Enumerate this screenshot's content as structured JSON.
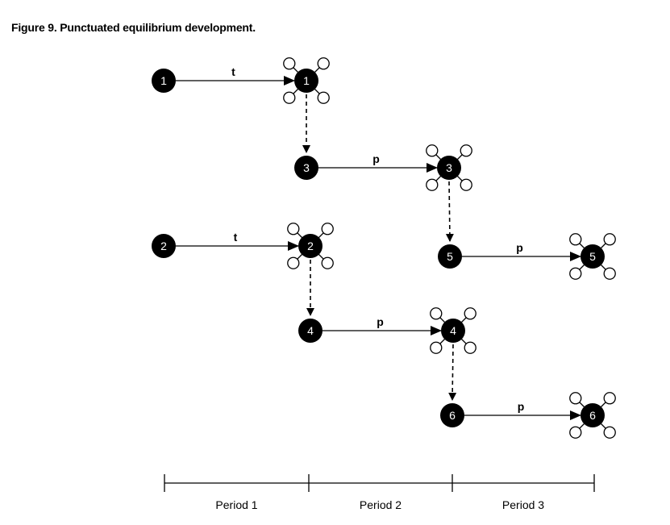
{
  "title": "Figure 9. Punctuated equilibrium development.",
  "nodes": [
    {
      "id": "a1",
      "label": "1",
      "expanded": false
    },
    {
      "id": "b1",
      "label": "1",
      "expanded": true
    },
    {
      "id": "a3",
      "label": "3",
      "expanded": false
    },
    {
      "id": "b3",
      "label": "3",
      "expanded": true
    },
    {
      "id": "a2",
      "label": "2",
      "expanded": false
    },
    {
      "id": "b2",
      "label": "2",
      "expanded": true
    },
    {
      "id": "a5",
      "label": "5",
      "expanded": false
    },
    {
      "id": "b5",
      "label": "5",
      "expanded": true
    },
    {
      "id": "a4",
      "label": "4",
      "expanded": false
    },
    {
      "id": "b4",
      "label": "4",
      "expanded": true
    },
    {
      "id": "a6",
      "label": "6",
      "expanded": false
    },
    {
      "id": "b6",
      "label": "6",
      "expanded": true
    }
  ],
  "edges": [
    {
      "from": "a1",
      "to": "b1",
      "style": "solid",
      "label": "t"
    },
    {
      "from": "b1",
      "to": "a3",
      "style": "dashed",
      "label": ""
    },
    {
      "from": "a3",
      "to": "b3",
      "style": "solid",
      "label": "p"
    },
    {
      "from": "b3",
      "to": "a5",
      "style": "dashed",
      "label": ""
    },
    {
      "from": "a5",
      "to": "b5",
      "style": "solid",
      "label": "p"
    },
    {
      "from": "a2",
      "to": "b2",
      "style": "solid",
      "label": "t"
    },
    {
      "from": "b2",
      "to": "a4",
      "style": "dashed",
      "label": ""
    },
    {
      "from": "a4",
      "to": "b4",
      "style": "solid",
      "label": "p"
    },
    {
      "from": "b4",
      "to": "a6",
      "style": "dashed",
      "label": ""
    },
    {
      "from": "a6",
      "to": "b6",
      "style": "solid",
      "label": "p"
    }
  ],
  "periods": [
    "Period 1",
    "Period 2",
    "Period 3"
  ]
}
